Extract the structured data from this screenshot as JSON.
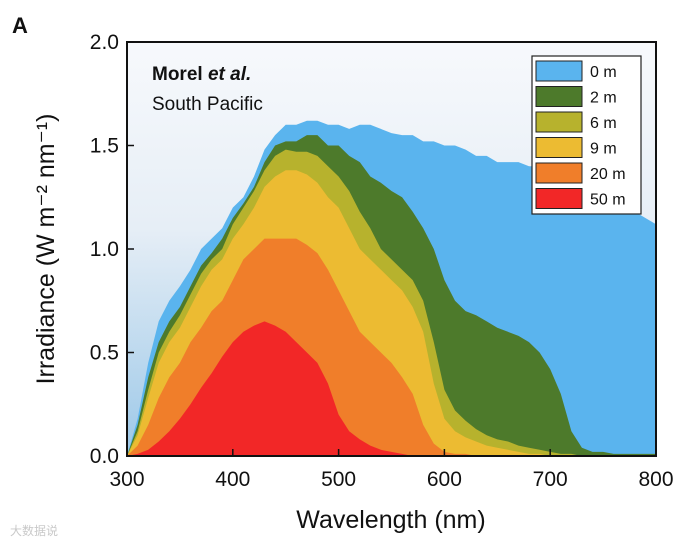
{
  "panel_label": "A",
  "credit_text": "大数据说",
  "chart_data": {
    "type": "area",
    "title": "",
    "xlabel": "Wavelength (nm)",
    "ylabel": "Irradiance (W m⁻² nm⁻¹)",
    "xlim": [
      300,
      800
    ],
    "ylim": [
      0,
      2.0
    ],
    "x_ticks": [
      "300",
      "400",
      "500",
      "600",
      "700",
      "800"
    ],
    "y_ticks": [
      "0.0",
      "0.5",
      "1.0",
      "1.5",
      "2.0"
    ],
    "grid": false,
    "annotation_bold": "Morel ",
    "annotation_italic": "et al.",
    "annotation_sub": "South Pacific",
    "legend_position": "top-right",
    "x": [
      300,
      310,
      320,
      330,
      340,
      350,
      360,
      370,
      380,
      390,
      400,
      410,
      420,
      430,
      440,
      450,
      460,
      470,
      480,
      490,
      500,
      510,
      520,
      530,
      540,
      550,
      560,
      570,
      580,
      590,
      600,
      610,
      620,
      630,
      640,
      650,
      660,
      670,
      680,
      690,
      700,
      710,
      720,
      730,
      740,
      750,
      760,
      770,
      780,
      790,
      800
    ],
    "series": [
      {
        "name": "0 m",
        "color": "#5ab4ee",
        "values": [
          0.0,
          0.18,
          0.45,
          0.65,
          0.75,
          0.82,
          0.9,
          1.0,
          1.05,
          1.1,
          1.2,
          1.25,
          1.35,
          1.48,
          1.55,
          1.6,
          1.6,
          1.62,
          1.62,
          1.6,
          1.6,
          1.58,
          1.6,
          1.6,
          1.58,
          1.56,
          1.55,
          1.55,
          1.52,
          1.52,
          1.5,
          1.5,
          1.48,
          1.45,
          1.45,
          1.42,
          1.42,
          1.42,
          1.4,
          1.4,
          1.35,
          1.3,
          1.28,
          1.28,
          1.27,
          1.25,
          1.22,
          1.2,
          1.18,
          1.15,
          1.12
        ]
      },
      {
        "name": "2 m",
        "color": "#4d7a2b",
        "values": [
          0.0,
          0.15,
          0.38,
          0.55,
          0.65,
          0.72,
          0.82,
          0.92,
          0.98,
          1.05,
          1.15,
          1.22,
          1.3,
          1.42,
          1.5,
          1.52,
          1.52,
          1.55,
          1.55,
          1.5,
          1.5,
          1.45,
          1.42,
          1.35,
          1.32,
          1.28,
          1.25,
          1.18,
          1.1,
          1.0,
          0.85,
          0.75,
          0.7,
          0.68,
          0.65,
          0.62,
          0.6,
          0.58,
          0.55,
          0.5,
          0.42,
          0.3,
          0.12,
          0.04,
          0.02,
          0.02,
          0.01,
          0.01,
          0.01,
          0.01,
          0.01
        ]
      },
      {
        "name": "6 m",
        "color": "#b7b22d",
        "values": [
          0.0,
          0.12,
          0.32,
          0.5,
          0.6,
          0.68,
          0.78,
          0.88,
          0.95,
          1.0,
          1.12,
          1.2,
          1.28,
          1.38,
          1.45,
          1.48,
          1.47,
          1.47,
          1.45,
          1.4,
          1.35,
          1.28,
          1.18,
          1.1,
          1.0,
          0.95,
          0.9,
          0.85,
          0.75,
          0.55,
          0.32,
          0.22,
          0.17,
          0.13,
          0.1,
          0.08,
          0.07,
          0.05,
          0.04,
          0.03,
          0.02,
          0.01,
          0.01,
          0.0,
          0.0,
          0.0,
          0.0,
          0.0,
          0.0,
          0.0,
          0.0
        ]
      },
      {
        "name": "9 m",
        "color": "#ecbb32",
        "values": [
          0.0,
          0.1,
          0.28,
          0.45,
          0.55,
          0.62,
          0.72,
          0.82,
          0.9,
          0.95,
          1.05,
          1.12,
          1.2,
          1.3,
          1.35,
          1.38,
          1.38,
          1.36,
          1.32,
          1.25,
          1.2,
          1.1,
          1.0,
          0.95,
          0.9,
          0.85,
          0.8,
          0.72,
          0.6,
          0.35,
          0.18,
          0.12,
          0.09,
          0.07,
          0.05,
          0.04,
          0.03,
          0.02,
          0.01,
          0.01,
          0.0,
          0.0,
          0.0,
          0.0,
          0.0,
          0.0,
          0.0,
          0.0,
          0.0,
          0.0,
          0.0
        ]
      },
      {
        "name": "20 m",
        "color": "#f07e2a",
        "values": [
          0.0,
          0.05,
          0.15,
          0.28,
          0.38,
          0.45,
          0.55,
          0.62,
          0.7,
          0.75,
          0.85,
          0.95,
          1.0,
          1.05,
          1.05,
          1.05,
          1.05,
          1.02,
          0.98,
          0.9,
          0.8,
          0.7,
          0.6,
          0.55,
          0.5,
          0.45,
          0.38,
          0.3,
          0.15,
          0.06,
          0.02,
          0.01,
          0.01,
          0.0,
          0.0,
          0.0,
          0.0,
          0.0,
          0.0,
          0.0,
          0.0,
          0.0,
          0.0,
          0.0,
          0.0,
          0.0,
          0.0,
          0.0,
          0.0,
          0.0,
          0.0
        ]
      },
      {
        "name": "50 m",
        "color": "#f22727",
        "values": [
          0.0,
          0.01,
          0.03,
          0.07,
          0.12,
          0.18,
          0.25,
          0.33,
          0.4,
          0.48,
          0.55,
          0.6,
          0.63,
          0.65,
          0.63,
          0.6,
          0.55,
          0.5,
          0.45,
          0.35,
          0.2,
          0.12,
          0.08,
          0.05,
          0.03,
          0.02,
          0.01,
          0.0,
          0.0,
          0.0,
          0.0,
          0.0,
          0.0,
          0.0,
          0.0,
          0.0,
          0.0,
          0.0,
          0.0,
          0.0,
          0.0,
          0.0,
          0.0,
          0.0,
          0.0,
          0.0,
          0.0,
          0.0,
          0.0,
          0.0,
          0.0
        ]
      }
    ]
  }
}
